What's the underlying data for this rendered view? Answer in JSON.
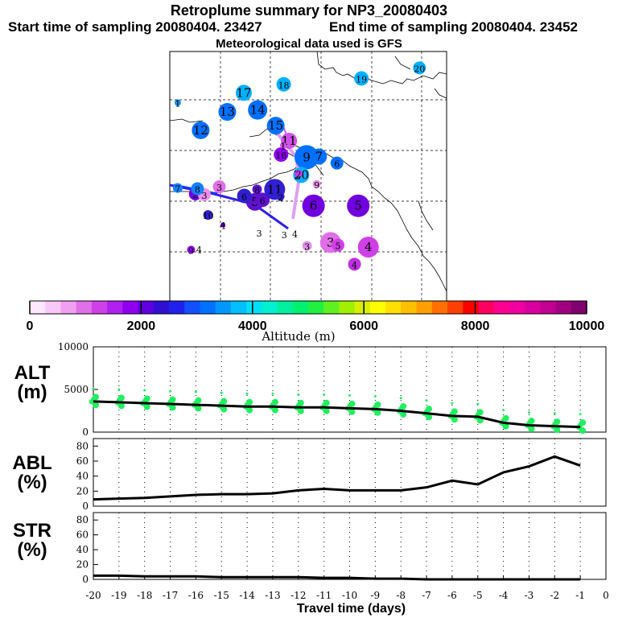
{
  "header": {
    "title": "Retroplume summary for NP3_20080403",
    "start_time": "Start time of sampling 20080404. 23427",
    "end_time": "End time of sampling 20080404. 23452",
    "met_data": "Meteorological data used is GFS"
  },
  "colorbar": {
    "label": "Altitude (m)",
    "ticks": [
      "0",
      "2000",
      "4000",
      "6000",
      "8000",
      "10000"
    ],
    "colors": [
      "#fde8fd",
      "#f8c8f8",
      "#f0a0f0",
      "#e070e8",
      "#d040e8",
      "#b020f0",
      "#9000f0",
      "#6000e0",
      "#3010d0",
      "#2020ee",
      "#1050ff",
      "#0070ff",
      "#0098ff",
      "#00c0ff",
      "#00e0f8",
      "#00f0d0",
      "#00f0a0",
      "#00f070",
      "#20f040",
      "#60f020",
      "#a0f000",
      "#d8f000",
      "#ffff00",
      "#ffe000",
      "#ffc000",
      "#ffa000",
      "#ff7000",
      "#ff4000",
      "#ff0000",
      "#ff0060",
      "#ff0090",
      "#f000a0",
      "#d800a0",
      "#c00090",
      "#a00080",
      "#800070"
    ]
  },
  "map": {
    "track_points": [
      {
        "label": "1",
        "color": "#1090ff",
        "lon": -170.5,
        "lat": 67.2,
        "size": 4
      },
      {
        "label": "2",
        "color": "#7000e0",
        "lon": -167.2,
        "lat": 53.3,
        "size": 8
      },
      {
        "label": "3",
        "color": "#ee90ee",
        "lon": -165.5,
        "lat": 53.2,
        "size": 8
      },
      {
        "label": "4",
        "color": "#7000e0",
        "lon": -162.0,
        "lat": 48.6,
        "size": 3
      },
      {
        "label": "5",
        "color": "#6010d0",
        "lon": -156.0,
        "lat": 52.1,
        "size": 11
      },
      {
        "label": "6",
        "color": "#6010d0",
        "lon": -154.6,
        "lat": 52.4,
        "size": 9
      },
      {
        "label": "7",
        "color": "#1080ff",
        "lon": -170.5,
        "lat": 54.2,
        "size": 6
      },
      {
        "label": "8",
        "color": "#1080ff",
        "lon": -166.8,
        "lat": 54.1,
        "size": 8
      },
      {
        "label": "9",
        "color": "#9000f0",
        "lon": -168.0,
        "lat": 44.8,
        "size": 5
      },
      {
        "label": "10",
        "color": "#3020d0",
        "lon": -164.8,
        "lat": 50.1,
        "size": 6
      },
      {
        "label": "11",
        "color": "#3020d0",
        "lon": -152.3,
        "lat": 54.0,
        "size": 13
      },
      {
        "label": "12",
        "color": "#0070ff",
        "lon": -166.2,
        "lat": 63.0,
        "size": 11
      },
      {
        "label": "13",
        "color": "#0070ff",
        "lon": -161.2,
        "lat": 65.8,
        "size": 11
      },
      {
        "label": "14",
        "color": "#0070ff",
        "lon": -155.5,
        "lat": 66.1,
        "size": 12
      },
      {
        "label": "15",
        "color": "#0070ff",
        "lon": -152.1,
        "lat": 63.7,
        "size": 11
      },
      {
        "label": "17",
        "color": "#00b0ff",
        "lon": -158.1,
        "lat": 68.7,
        "size": 10
      },
      {
        "label": "18",
        "color": "#00b0ff",
        "lon": -150.6,
        "lat": 70.0,
        "size": 9
      },
      {
        "label": "19",
        "color": "#00b0ff",
        "lon": -136.0,
        "lat": 70.9,
        "size": 9
      },
      {
        "label": "20",
        "color": "#00b0ff",
        "lon": -125.1,
        "lat": 72.5,
        "size": 8
      },
      {
        "label": "16",
        "color": "#9000f0",
        "lon": -151.1,
        "lat": 59.3,
        "size": 9
      },
      {
        "label": "11",
        "color": "#d050e8",
        "lon": -149.6,
        "lat": 61.4,
        "size": 10
      },
      {
        "label": "1",
        "color": "#d050e8",
        "lon": -150.7,
        "lat": 60.7,
        "size": 4
      },
      {
        "label": "9",
        "color": "#0070ff",
        "lon": -146.3,
        "lat": 58.9,
        "size": 15
      },
      {
        "label": "7",
        "color": "#0070ff",
        "lon": -144.0,
        "lat": 59.0,
        "size": 10
      },
      {
        "label": "6",
        "color": "#0070ff",
        "lon": -140.6,
        "lat": 58.0,
        "size": 8
      },
      {
        "label": "20",
        "color": "#00b0ff",
        "lon": -147.3,
        "lat": 56.2,
        "size": 10
      },
      {
        "label": "2",
        "color": "#c040e8",
        "lon": -147.8,
        "lat": 56.4,
        "size": 5
      },
      {
        "label": "9",
        "color": "#e890e8",
        "lon": -144.4,
        "lat": 54.8,
        "size": 5
      },
      {
        "label": "3",
        "color": "#e070e8",
        "lon": -162.7,
        "lat": 54.4,
        "size": 8
      },
      {
        "label": "8",
        "color": "#6010d0",
        "lon": -155.6,
        "lat": 54.0,
        "size": 6
      },
      {
        "label": "6",
        "color": "#3020d0",
        "lon": -158.0,
        "lat": 53.0,
        "size": 9
      },
      {
        "label": "2",
        "color": "#3020d0",
        "lon": -151.2,
        "lat": 52.9,
        "size": 5
      },
      {
        "label": "6",
        "color": "#7000e0",
        "lon": -145.0,
        "lat": 51.5,
        "size": 14
      },
      {
        "label": "5",
        "color": "#7000e0",
        "lon": -136.6,
        "lat": 51.5,
        "size": 14
      },
      {
        "label": "3",
        "color": "#ffffff",
        "lon": -155.2,
        "lat": 47.4,
        "size": 0
      },
      {
        "label": "4",
        "color": "#ffffff",
        "lon": -148.5,
        "lat": 47.3,
        "size": 0
      },
      {
        "label": "3",
        "color": "#e070e8",
        "lon": -141.8,
        "lat": 45.9,
        "size": 13
      },
      {
        "label": "3",
        "color": "#e090e8",
        "lon": -146.2,
        "lat": 45.4,
        "size": 6
      },
      {
        "label": "5",
        "color": "#d040e8",
        "lon": -140.4,
        "lat": 45.5,
        "size": 8
      },
      {
        "label": "4",
        "color": "#d040e8",
        "lon": -134.7,
        "lat": 45.2,
        "size": 13
      },
      {
        "label": "4",
        "color": "#c030e0",
        "lon": -137.3,
        "lat": 42.6,
        "size": 8
      },
      {
        "label": "4",
        "color": "#ffffff",
        "lon": -166.5,
        "lat": 44.9,
        "size": 0
      },
      {
        "label": "3",
        "color": "#ffffff",
        "lon": -150.5,
        "lat": 47.2,
        "size": 0
      }
    ]
  },
  "chart_data": [
    {
      "type": "line",
      "name": "ALT",
      "ylabel": "ALT (m)",
      "ylim": [
        0,
        10000
      ],
      "yticks": [
        "0",
        "5000",
        "10000"
      ],
      "x": [
        -20,
        -19,
        -18,
        -17,
        -16,
        -15,
        -14,
        -13,
        -12,
        -11,
        -10,
        -9,
        -8,
        -7,
        -6,
        -5,
        -4,
        -3,
        -2,
        -1
      ],
      "median": [
        3600,
        3500,
        3400,
        3300,
        3200,
        3100,
        3000,
        3000,
        2900,
        2900,
        2800,
        2700,
        2500,
        2200,
        1900,
        1800,
        1100,
        800,
        700,
        600
      ],
      "scatter_color": "#20f060"
    },
    {
      "type": "line",
      "name": "ABL",
      "ylabel": "ABL (%)",
      "ylim": [
        0,
        90
      ],
      "yticks": [
        "0",
        "20",
        "40",
        "60",
        "80"
      ],
      "x": [
        -20,
        -19,
        -18,
        -17,
        -16,
        -15,
        -14,
        -13,
        -12,
        -11,
        -10,
        -9,
        -8,
        -7,
        -6,
        -5,
        -4,
        -3,
        -2,
        -1
      ],
      "values": [
        9,
        10,
        11,
        13,
        15,
        16,
        16,
        17,
        21,
        23,
        21,
        21,
        21,
        25,
        34,
        29,
        45,
        53,
        66,
        54
      ]
    },
    {
      "type": "line",
      "name": "STR",
      "ylabel": "STR (%)",
      "ylim": [
        0,
        90
      ],
      "yticks": [
        "0",
        "20",
        "40",
        "60",
        "80"
      ],
      "x": [
        -20,
        -19,
        -18,
        -17,
        -16,
        -15,
        -14,
        -13,
        -12,
        -11,
        -10,
        -9,
        -8,
        -7,
        -6,
        -5,
        -4,
        -3,
        -2,
        -1
      ],
      "values": [
        5,
        5,
        4,
        4,
        4,
        3,
        3,
        3,
        3,
        2,
        2,
        1,
        1,
        0,
        0,
        0,
        0,
        0,
        0,
        0
      ]
    }
  ],
  "xaxis": {
    "label": "Travel time (days)",
    "ticks": [
      "-20",
      "-19",
      "-18",
      "-17",
      "-16",
      "-15",
      "-14",
      "-13",
      "-12",
      "-11",
      "-10",
      "-9",
      "-8",
      "-7",
      "-6",
      "-5",
      "-4",
      "-3",
      "-2",
      "-1",
      "0"
    ]
  },
  "panel_labels": {
    "alt_top": "ALT",
    "alt_bottom": "(m)",
    "abl_top": "ABL",
    "abl_bottom": "(%)",
    "str_top": "STR",
    "str_bottom": "(%)"
  }
}
